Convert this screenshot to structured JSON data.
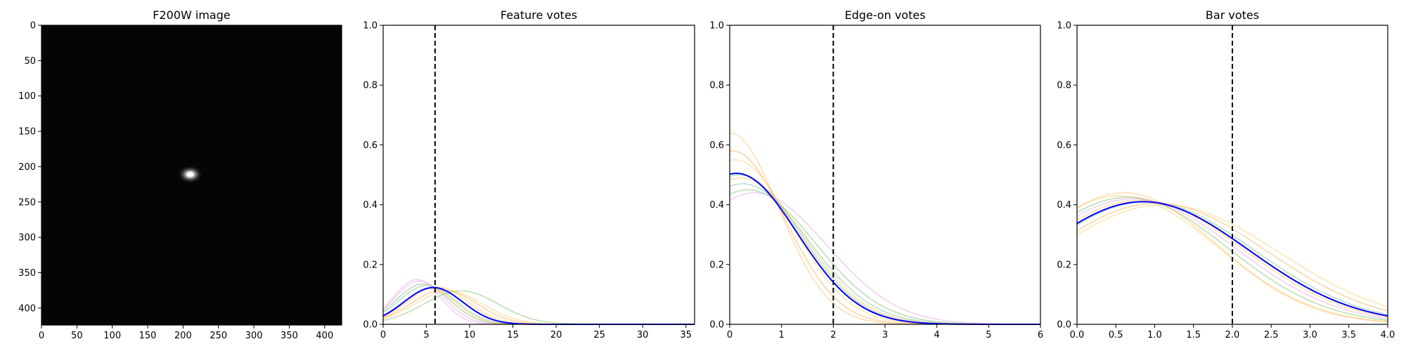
{
  "figure": {
    "background": "#ffffff"
  },
  "colors": {
    "image_background": "#050505",
    "vline_color": "#000000",
    "mean_color": "#0000ff",
    "draw_colors": [
      "#ffbf66",
      "#7cbf6a",
      "#e4a6e4",
      "#f4d26a",
      "#7cbf9e",
      "#ffaa55"
    ]
  },
  "chart_data": [
    {
      "type": "image",
      "title": "F200W image",
      "xlim": [
        0,
        424
      ],
      "ylim": [
        424,
        0
      ],
      "xticks": [
        0,
        50,
        100,
        150,
        200,
        250,
        300,
        350,
        400
      ],
      "yticks": [
        0,
        50,
        100,
        150,
        200,
        250,
        300,
        350,
        400
      ],
      "xtick_labels": [
        "0",
        "50",
        "100",
        "150",
        "200",
        "250",
        "300",
        "350",
        "400"
      ],
      "ytick_labels": [
        "0",
        "50",
        "100",
        "150",
        "200",
        "250",
        "300",
        "350",
        "400"
      ],
      "source": {
        "center": [
          210,
          211
        ],
        "core_sigma": [
          7,
          5
        ],
        "halo_sigma": [
          18,
          13
        ]
      },
      "background_color": "#050505"
    },
    {
      "type": "line",
      "title": "Feature votes",
      "xlim": [
        0,
        36
      ],
      "ylim": [
        0,
        1
      ],
      "xticks": [
        0,
        5,
        10,
        15,
        20,
        25,
        30,
        35
      ],
      "yticks": [
        0,
        0.2,
        0.4,
        0.6,
        0.8,
        1
      ],
      "xtick_labels": [
        "0",
        "5",
        "10",
        "15",
        "20",
        "25",
        "30",
        "35"
      ],
      "ytick_labels": [
        "0.0",
        "0.2",
        "0.4",
        "0.6",
        "0.8",
        "1.0"
      ],
      "vline": 6,
      "draws": [
        {
          "peak": 4.2,
          "sigma": 2.9,
          "height": 0.145,
          "color": "#e4a6e4"
        },
        {
          "peak": 4.6,
          "sigma": 3.1,
          "height": 0.135,
          "color": "#7cbf6a"
        },
        {
          "peak": 5.1,
          "sigma": 3.3,
          "height": 0.13,
          "color": "#7cbf9e"
        },
        {
          "peak": 6.3,
          "sigma": 3.5,
          "height": 0.125,
          "color": "#ffbf66"
        },
        {
          "peak": 7.0,
          "sigma": 3.8,
          "height": 0.115,
          "color": "#ffaa55"
        },
        {
          "peak": 7.6,
          "sigma": 4.0,
          "height": 0.11,
          "color": "#f4d26a"
        },
        {
          "peak": 9.0,
          "sigma": 4.3,
          "height": 0.112,
          "color": "#7cbf6a"
        },
        {
          "peak": 3.9,
          "sigma": 2.7,
          "height": 0.15,
          "color": "#e4a6e4"
        },
        {
          "peak": 5.4,
          "sigma": 3.0,
          "height": 0.12,
          "color": "#ffbf66"
        }
      ],
      "mean": {
        "peak": 5.8,
        "sigma": 3.4,
        "height": 0.123
      }
    },
    {
      "type": "line",
      "title": "Edge-on votes",
      "xlim": [
        0,
        6
      ],
      "ylim": [
        0,
        1
      ],
      "xticks": [
        0,
        1,
        2,
        3,
        4,
        5,
        6
      ],
      "yticks": [
        0,
        0.2,
        0.4,
        0.6,
        0.8,
        1
      ],
      "xtick_labels": [
        "0",
        "1",
        "2",
        "3",
        "4",
        "5",
        "6"
      ],
      "ytick_labels": [
        "0.0",
        "0.2",
        "0.4",
        "0.6",
        "0.8",
        "1.0"
      ],
      "vline": 2,
      "draws": [
        {
          "peak": 0.0,
          "sigma": 0.95,
          "height": 0.64,
          "color": "#ffbf66"
        },
        {
          "peak": 0.05,
          "sigma": 1.02,
          "height": 0.58,
          "color": "#ffaa55"
        },
        {
          "peak": 0.1,
          "sigma": 1.1,
          "height": 0.55,
          "color": "#f4d26a"
        },
        {
          "peak": 0.18,
          "sigma": 1.18,
          "height": 0.5,
          "color": "#7cbf6a"
        },
        {
          "peak": 0.25,
          "sigma": 1.25,
          "height": 0.47,
          "color": "#7cbf9e"
        },
        {
          "peak": 0.35,
          "sigma": 1.3,
          "height": 0.45,
          "color": "#7cbf6a"
        },
        {
          "peak": 0.48,
          "sigma": 1.38,
          "height": 0.44,
          "color": "#e4a6e4"
        },
        {
          "peak": 0.22,
          "sigma": 1.2,
          "height": 0.49,
          "color": "#ffbf66"
        }
      ],
      "mean": {
        "peak": 0.13,
        "sigma": 1.17,
        "height": 0.505
      }
    },
    {
      "type": "line",
      "title": "Bar votes",
      "xlim": [
        0,
        4
      ],
      "ylim": [
        0,
        1
      ],
      "xticks": [
        0,
        0.5,
        1,
        1.5,
        2,
        2.5,
        3,
        3.5,
        4
      ],
      "yticks": [
        0,
        0.2,
        0.4,
        0.6,
        0.8,
        1
      ],
      "xtick_labels": [
        "0.0",
        "0.5",
        "1.0",
        "1.5",
        "2.0",
        "2.5",
        "3.0",
        "3.5",
        "4.0"
      ],
      "ytick_labels": [
        "0.0",
        "0.2",
        "0.4",
        "0.6",
        "0.8",
        "1.0"
      ],
      "vline": 2,
      "draws": [
        {
          "peak": 0.55,
          "sigma": 1.25,
          "height": 0.43,
          "color": "#f4d26a"
        },
        {
          "peak": 0.65,
          "sigma": 1.28,
          "height": 0.425,
          "color": "#7cbf6a"
        },
        {
          "peak": 0.72,
          "sigma": 1.32,
          "height": 0.42,
          "color": "#e4a6e4"
        },
        {
          "peak": 0.8,
          "sigma": 1.34,
          "height": 0.415,
          "color": "#ffbf66"
        },
        {
          "peak": 0.9,
          "sigma": 1.38,
          "height": 0.41,
          "color": "#7cbf9e"
        },
        {
          "peak": 1.02,
          "sigma": 1.42,
          "height": 0.405,
          "color": "#ffaa55"
        },
        {
          "peak": 1.12,
          "sigma": 1.47,
          "height": 0.4,
          "color": "#f4d26a"
        },
        {
          "peak": 0.6,
          "sigma": 1.2,
          "height": 0.44,
          "color": "#ffbf66"
        }
      ],
      "mean": {
        "peak": 0.85,
        "sigma": 1.36,
        "height": 0.41
      }
    }
  ]
}
